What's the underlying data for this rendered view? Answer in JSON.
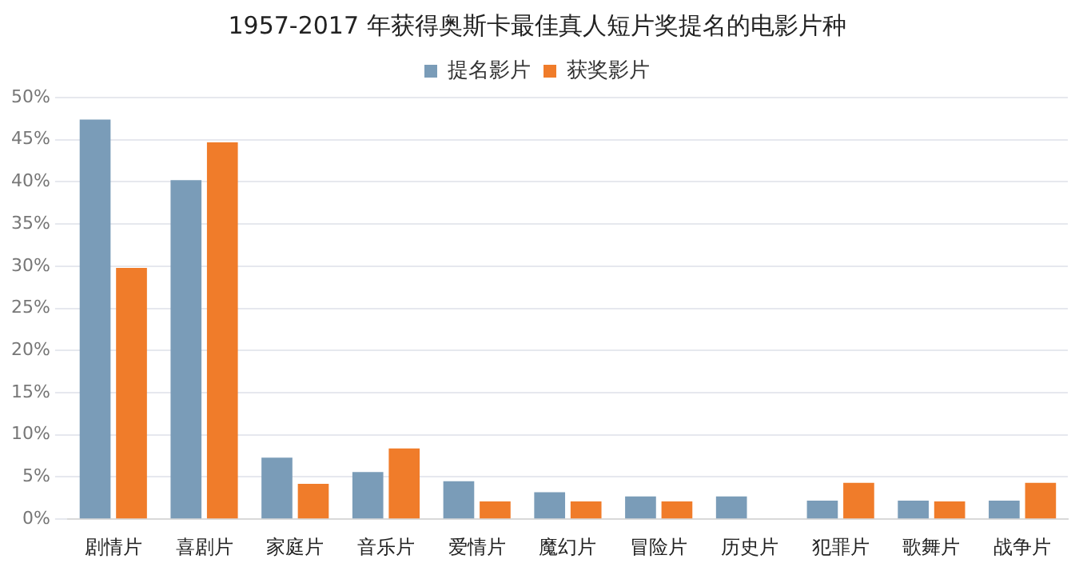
{
  "chart_data": {
    "type": "bar",
    "title": "1957-2017 年获得奥斯卡最佳真人短片奖提名的电影片种",
    "categories": [
      "剧情片",
      "喜剧片",
      "家庭片",
      "音乐片",
      "爱情片",
      "魔幻片",
      "冒险片",
      "历史片",
      "犯罪片",
      "歌舞片",
      "战争片"
    ],
    "series": [
      {
        "name": "提名影片",
        "color": "#7a9cb8",
        "values": [
          47.4,
          40.2,
          7.3,
          5.6,
          4.5,
          3.2,
          2.7,
          2.7,
          2.2,
          2.2,
          2.2
        ]
      },
      {
        "name": "获奖影片",
        "color": "#f07c2a",
        "values": [
          29.8,
          44.7,
          4.2,
          8.4,
          2.1,
          2.1,
          2.1,
          0,
          4.3,
          2.1,
          4.3
        ]
      }
    ],
    "ylim": [
      0,
      50
    ],
    "yticks": [
      {
        "value": 0,
        "label": "0%"
      },
      {
        "value": 5,
        "label": "5%"
      },
      {
        "value": 10,
        "label": "10%"
      },
      {
        "value": 15,
        "label": "15%"
      },
      {
        "value": 20,
        "label": "20%"
      },
      {
        "value": 25,
        "label": "25%"
      },
      {
        "value": 30,
        "label": "30%"
      },
      {
        "value": 35,
        "label": "35%"
      },
      {
        "value": 40,
        "label": "40%"
      },
      {
        "value": 45,
        "label": "45%"
      },
      {
        "value": 50,
        "label": "50%"
      }
    ],
    "grid": "y",
    "legend": "top"
  }
}
